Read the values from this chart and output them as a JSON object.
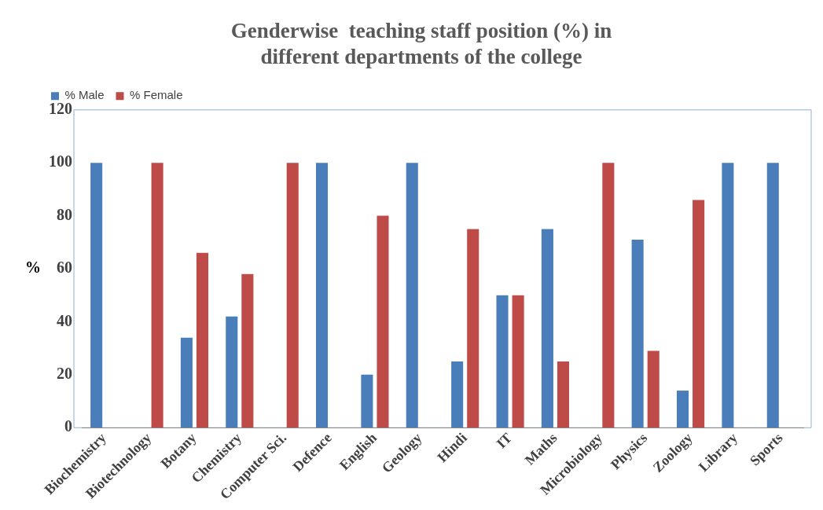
{
  "chart_data": {
    "type": "bar",
    "title": "Genderwise  teaching staff position (%) in different departments of the college",
    "ylabel": "%",
    "categories": [
      "Biochemistry",
      "Biotechnology",
      "Botany",
      "Chemistry",
      "Computer Sci.",
      "Defence",
      "English",
      "Geology",
      "Hindi",
      "IT",
      "Maths",
      "Microbiology",
      "Physics",
      "Zoology",
      "Library",
      "Sports"
    ],
    "series": [
      {
        "name": "% Male",
        "color": "#4a7ebb",
        "values": [
          100,
          0,
          34,
          42,
          0,
          100,
          20,
          100,
          25,
          50,
          75,
          0,
          71,
          14,
          100,
          100
        ]
      },
      {
        "name": "% Female",
        "color": "#be4b48",
        "values": [
          0,
          100,
          66,
          58,
          100,
          0,
          80,
          0,
          75,
          50,
          25,
          100,
          29,
          86,
          0,
          0
        ]
      }
    ],
    "ylim": [
      0,
      120
    ],
    "yticks": [
      0,
      20,
      40,
      60,
      80,
      100,
      120
    ],
    "grid": false,
    "legend": "top left"
  }
}
